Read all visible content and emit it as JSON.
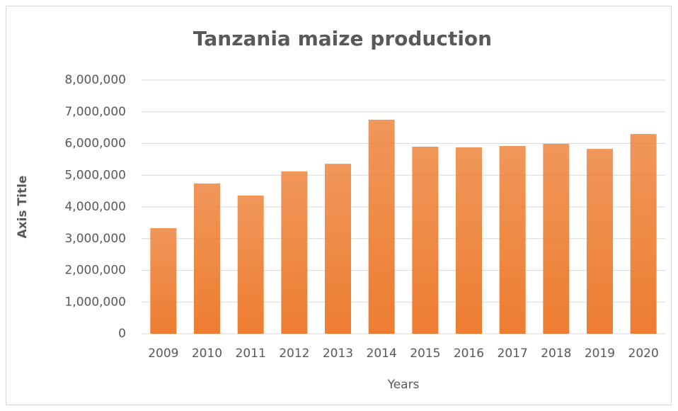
{
  "chart_data": {
    "type": "bar",
    "title": "Tanzania maize production",
    "x_label": "Years",
    "y_label": "Axis Title",
    "categories": [
      "2009",
      "2010",
      "2011",
      "2012",
      "2013",
      "2014",
      "2015",
      "2016",
      "2017",
      "2018",
      "2019",
      "2020"
    ],
    "values": [
      3330000,
      4740000,
      4360000,
      5120000,
      5360000,
      6750000,
      5900000,
      5880000,
      5920000,
      5990000,
      5830000,
      6300000
    ],
    "color": "#ed7d31",
    "ylim": [
      0,
      8000000
    ],
    "yticks": [
      0,
      {
        "value": 1000000,
        "label": "1,000,000"
      },
      {
        "value": 2000000,
        "label": "2,000,000"
      },
      {
        "value": 3000000,
        "label": "3,000,000"
      },
      {
        "value": 4000000,
        "label": "4,000,000"
      },
      {
        "value": 5000000,
        "label": "5,000,000"
      },
      {
        "value": 6000000,
        "label": "6,000,000"
      },
      {
        "value": 7000000,
        "label": "7,000,000"
      },
      {
        "value": 8000000,
        "label": "8,000,000"
      }
    ],
    "grid": true
  }
}
